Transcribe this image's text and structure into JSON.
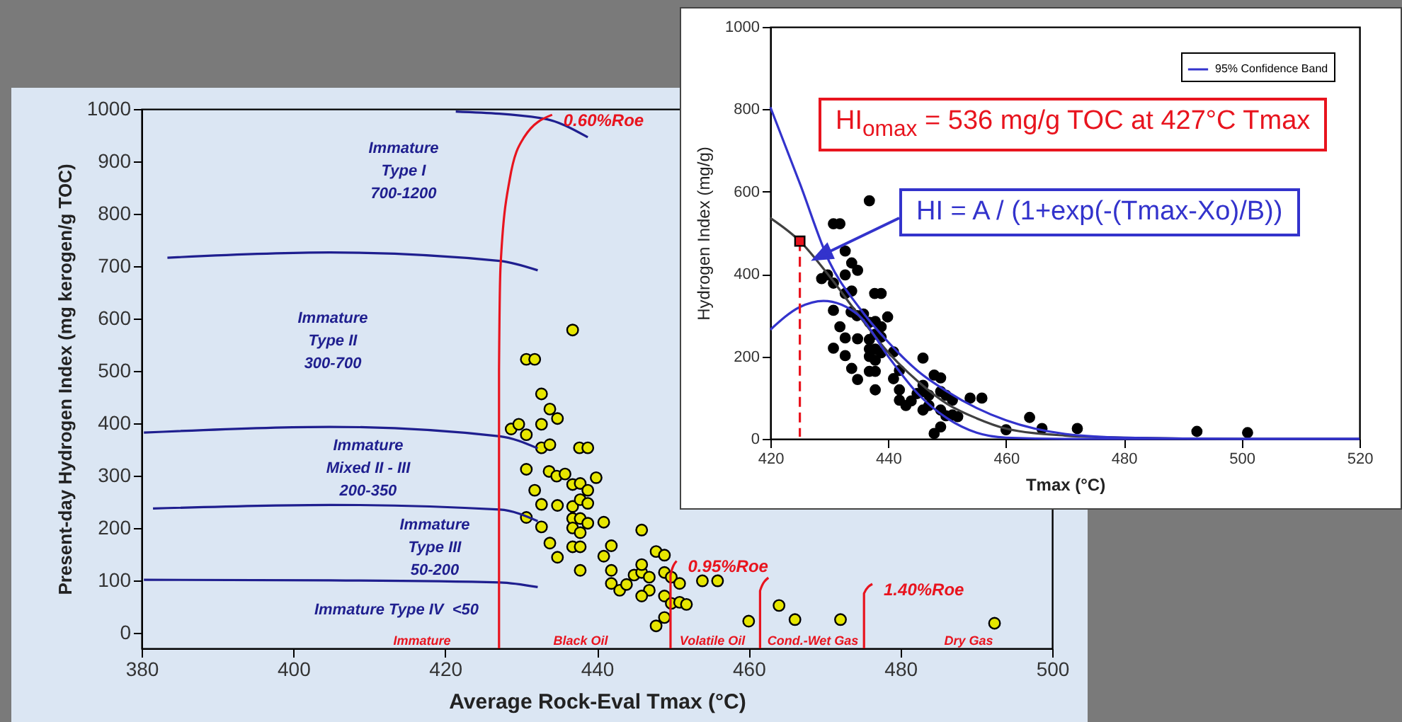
{
  "chart_data": [
    {
      "type": "scatter",
      "xlabel": "Average Rock-Eval Tmax (°C)",
      "ylabel": "Present-day Hydrogen Index (mg kerogen/g TOC)",
      "xlim": [
        380,
        500
      ],
      "xticks": [
        380,
        400,
        420,
        440,
        460,
        480,
        500
      ],
      "ylim": [
        -30,
        1000
      ],
      "yticks": [
        0,
        100,
        200,
        300,
        400,
        500,
        600,
        700,
        800,
        900,
        1000
      ],
      "grid": false,
      "legend": false,
      "series": [
        {
          "marker": "circle",
          "color": "#e6e600",
          "x": [
            436.8,
            430.7,
            431.8,
            432.7,
            433.8,
            434.8,
            432.7,
            428.7,
            429.7,
            430.7,
            432.7,
            433.8,
            437.7,
            438.8,
            430.7,
            433.7,
            434.7,
            435.8,
            431.8,
            436.8,
            437.8,
            438.8,
            439.9,
            432.7,
            434.8,
            436.8,
            437.8,
            438.8,
            430.7,
            432.7,
            436.8,
            437.8,
            438.8,
            440.9,
            436.8,
            437.8,
            433.8,
            436.8,
            437.8,
            434.8,
            437.8,
            440.9,
            441.9,
            445.9,
            447.8,
            448.9,
            441.9,
            441.9,
            443.0,
            443.9,
            444.9,
            445.9,
            446.9,
            445.9,
            448.9,
            449.8,
            450.9,
            446.9,
            445.9,
            448.9,
            449.8,
            450.9,
            451.8,
            448.9,
            447.8,
            453.9,
            455.9,
            460.0,
            464.0,
            466.1,
            472.1,
            492.4
          ],
          "values": [
            578,
            522,
            522,
            456,
            427,
            409,
            398,
            389,
            398,
            378,
            353,
            359,
            353,
            353,
            312,
            308,
            299,
            303,
            272,
            283,
            285,
            272,
            296,
            245,
            243,
            241,
            254,
            247,
            220,
            202,
            218,
            218,
            209,
            211,
            200,
            191,
            171,
            164,
            164,
            144,
            119,
            146,
            166,
            196,
            155,
            148,
            119,
            94,
            81,
            92,
            110,
            115,
            106,
            130,
            115,
            106,
            94,
            81,
            70,
            70,
            56,
            58,
            54,
            29,
            13,
            99,
            99,
            22,
            52,
            25,
            25,
            18
          ]
        },
        {
          "type": "line",
          "color": "#1f1f8f",
          "x": [
            421.4,
            432.9,
            438.8
          ],
          "values": [
            995,
            982,
            946
          ]
        },
        {
          "type": "line",
          "color": "#1f1f8f",
          "x": [
            383.4,
            404.8,
            427.2,
            432.2
          ],
          "values": [
            716,
            726,
            710,
            692
          ]
        },
        {
          "type": "line",
          "color": "#1f1f8f",
          "x": [
            380.3,
            404.8,
            427.2,
            432.2
          ],
          "values": [
            382,
            393,
            375,
            352
          ]
        },
        {
          "type": "line",
          "color": "#1f1f8f",
          "x": [
            381.5,
            404.8,
            427.2,
            432.2
          ],
          "values": [
            237,
            244,
            235,
            213
          ]
        },
        {
          "type": "line",
          "color": "#1f1f8f",
          "x": [
            380.3,
            404.8,
            427.2,
            432.2
          ],
          "values": [
            101,
            100,
            96,
            87
          ]
        },
        {
          "type": "line",
          "name": "0.60%Roe",
          "color": "#e8141e",
          "x": [
            427.1,
            427.1,
            427.3,
            428.5,
            430.4,
            434.1
          ],
          "values": [
            -30,
            500,
            700,
            865,
            946,
            989
          ]
        },
        {
          "type": "line",
          "name": "0.95%Roe",
          "color": "#e8141e",
          "x": [
            449.7,
            449.7,
            450.5
          ],
          "values": [
            -30,
            110,
            137
          ]
        },
        {
          "type": "line",
          "color": "#e8141e",
          "x": [
            461.5,
            461.5,
            462.6
          ],
          "values": [
            -30,
            80,
            105
          ]
        },
        {
          "type": "line",
          "name": "1.40%Roe",
          "color": "#e8141e",
          "x": [
            475.2,
            475.2,
            476.3
          ],
          "values": [
            -30,
            75,
            93
          ]
        }
      ],
      "annotations": [
        "Immature\nType I\n700-1200",
        "Immature\nType II\n300-700",
        "Immature\nMixed II - III\n200-350",
        "Immature\nType III\n50-200",
        "Immature Type IV  <50",
        "Immature",
        "Black Oil",
        "Volatile Oil",
        "Cond.-Wet Gas",
        "Dry Gas"
      ]
    },
    {
      "type": "scatter",
      "xlabel": "Tmax (°C)",
      "ylabel": "Hydrogen Index (mg/g)",
      "xlim": [
        420,
        520
      ],
      "xticks": [
        420,
        440,
        460,
        480,
        500,
        520
      ],
      "ylim": [
        0,
        1000
      ],
      "yticks": [
        0,
        200,
        400,
        600,
        800,
        1000
      ],
      "grid": false,
      "legend": "top right",
      "series": [
        {
          "marker": "circle",
          "color": "#000000",
          "x": [
            436.8,
            430.7,
            431.8,
            432.7,
            433.8,
            434.8,
            432.7,
            428.7,
            429.7,
            430.7,
            432.7,
            433.8,
            437.7,
            438.8,
            430.7,
            433.7,
            434.7,
            435.8,
            431.8,
            436.8,
            437.8,
            438.8,
            439.9,
            432.7,
            434.8,
            436.8,
            437.8,
            438.8,
            430.7,
            432.7,
            436.8,
            437.8,
            438.8,
            440.9,
            436.8,
            437.8,
            433.8,
            436.8,
            437.8,
            434.8,
            437.8,
            440.9,
            441.9,
            445.9,
            447.8,
            448.9,
            441.9,
            441.9,
            443.0,
            443.9,
            444.9,
            445.9,
            446.9,
            445.9,
            448.9,
            449.8,
            450.9,
            446.9,
            445.9,
            448.9,
            449.8,
            450.9,
            451.8,
            448.9,
            447.8,
            453.9,
            455.9,
            460.0,
            464.0,
            466.1,
            472.1,
            492.4,
            501.0
          ],
          "values": [
            578,
            522,
            522,
            456,
            427,
            409,
            398,
            389,
            398,
            378,
            353,
            359,
            353,
            353,
            312,
            308,
            299,
            303,
            272,
            283,
            285,
            272,
            296,
            245,
            243,
            241,
            254,
            247,
            220,
            202,
            218,
            218,
            209,
            211,
            200,
            191,
            171,
            164,
            164,
            144,
            119,
            146,
            166,
            196,
            155,
            148,
            119,
            94,
            81,
            92,
            110,
            115,
            106,
            130,
            115,
            106,
            94,
            81,
            70,
            70,
            56,
            58,
            54,
            29,
            13,
            99,
            99,
            22,
            52,
            25,
            25,
            18,
            15
          ]
        },
        {
          "type": "line",
          "color": "#404040",
          "x": [
            420,
            425,
            430,
            435,
            440,
            445,
            450,
            455,
            460,
            470,
            480,
            500,
            520
          ],
          "values": [
            536,
            480,
            395,
            300,
            210,
            140,
            85,
            50,
            25,
            8,
            3,
            0,
            0
          ]
        },
        {
          "type": "line",
          "name": "95% Confidence Band",
          "color": "#3333cc",
          "x": [
            420,
            425,
            430,
            435,
            440,
            445,
            450,
            455,
            460,
            470,
            480,
            500,
            520
          ],
          "values": [
            805,
            620,
            430,
            320,
            235,
            165,
            115,
            75,
            45,
            12,
            3,
            0,
            0
          ]
        },
        {
          "type": "line",
          "color": "#3333cc",
          "x": [
            420,
            425,
            429,
            435,
            440,
            445,
            450,
            455,
            460,
            470,
            520
          ],
          "values": [
            265,
            320,
            335,
            300,
            200,
            110,
            50,
            15,
            3,
            0,
            0
          ]
        },
        {
          "type": "line",
          "color": "#e8141e",
          "line_style": "dashed",
          "x": [
            425,
            425
          ],
          "values": [
            480,
            5
          ]
        },
        {
          "type": "scatter",
          "color": "#e8141e",
          "marker": "square",
          "x": [
            425
          ],
          "values": [
            480
          ]
        }
      ],
      "annotations": [
        "HI$_{omax}$ = 536 mg/g TOC at 427°C Tmax",
        "HI = A / (1+exp(-(Tmax-Xo)/B))"
      ]
    }
  ]
}
